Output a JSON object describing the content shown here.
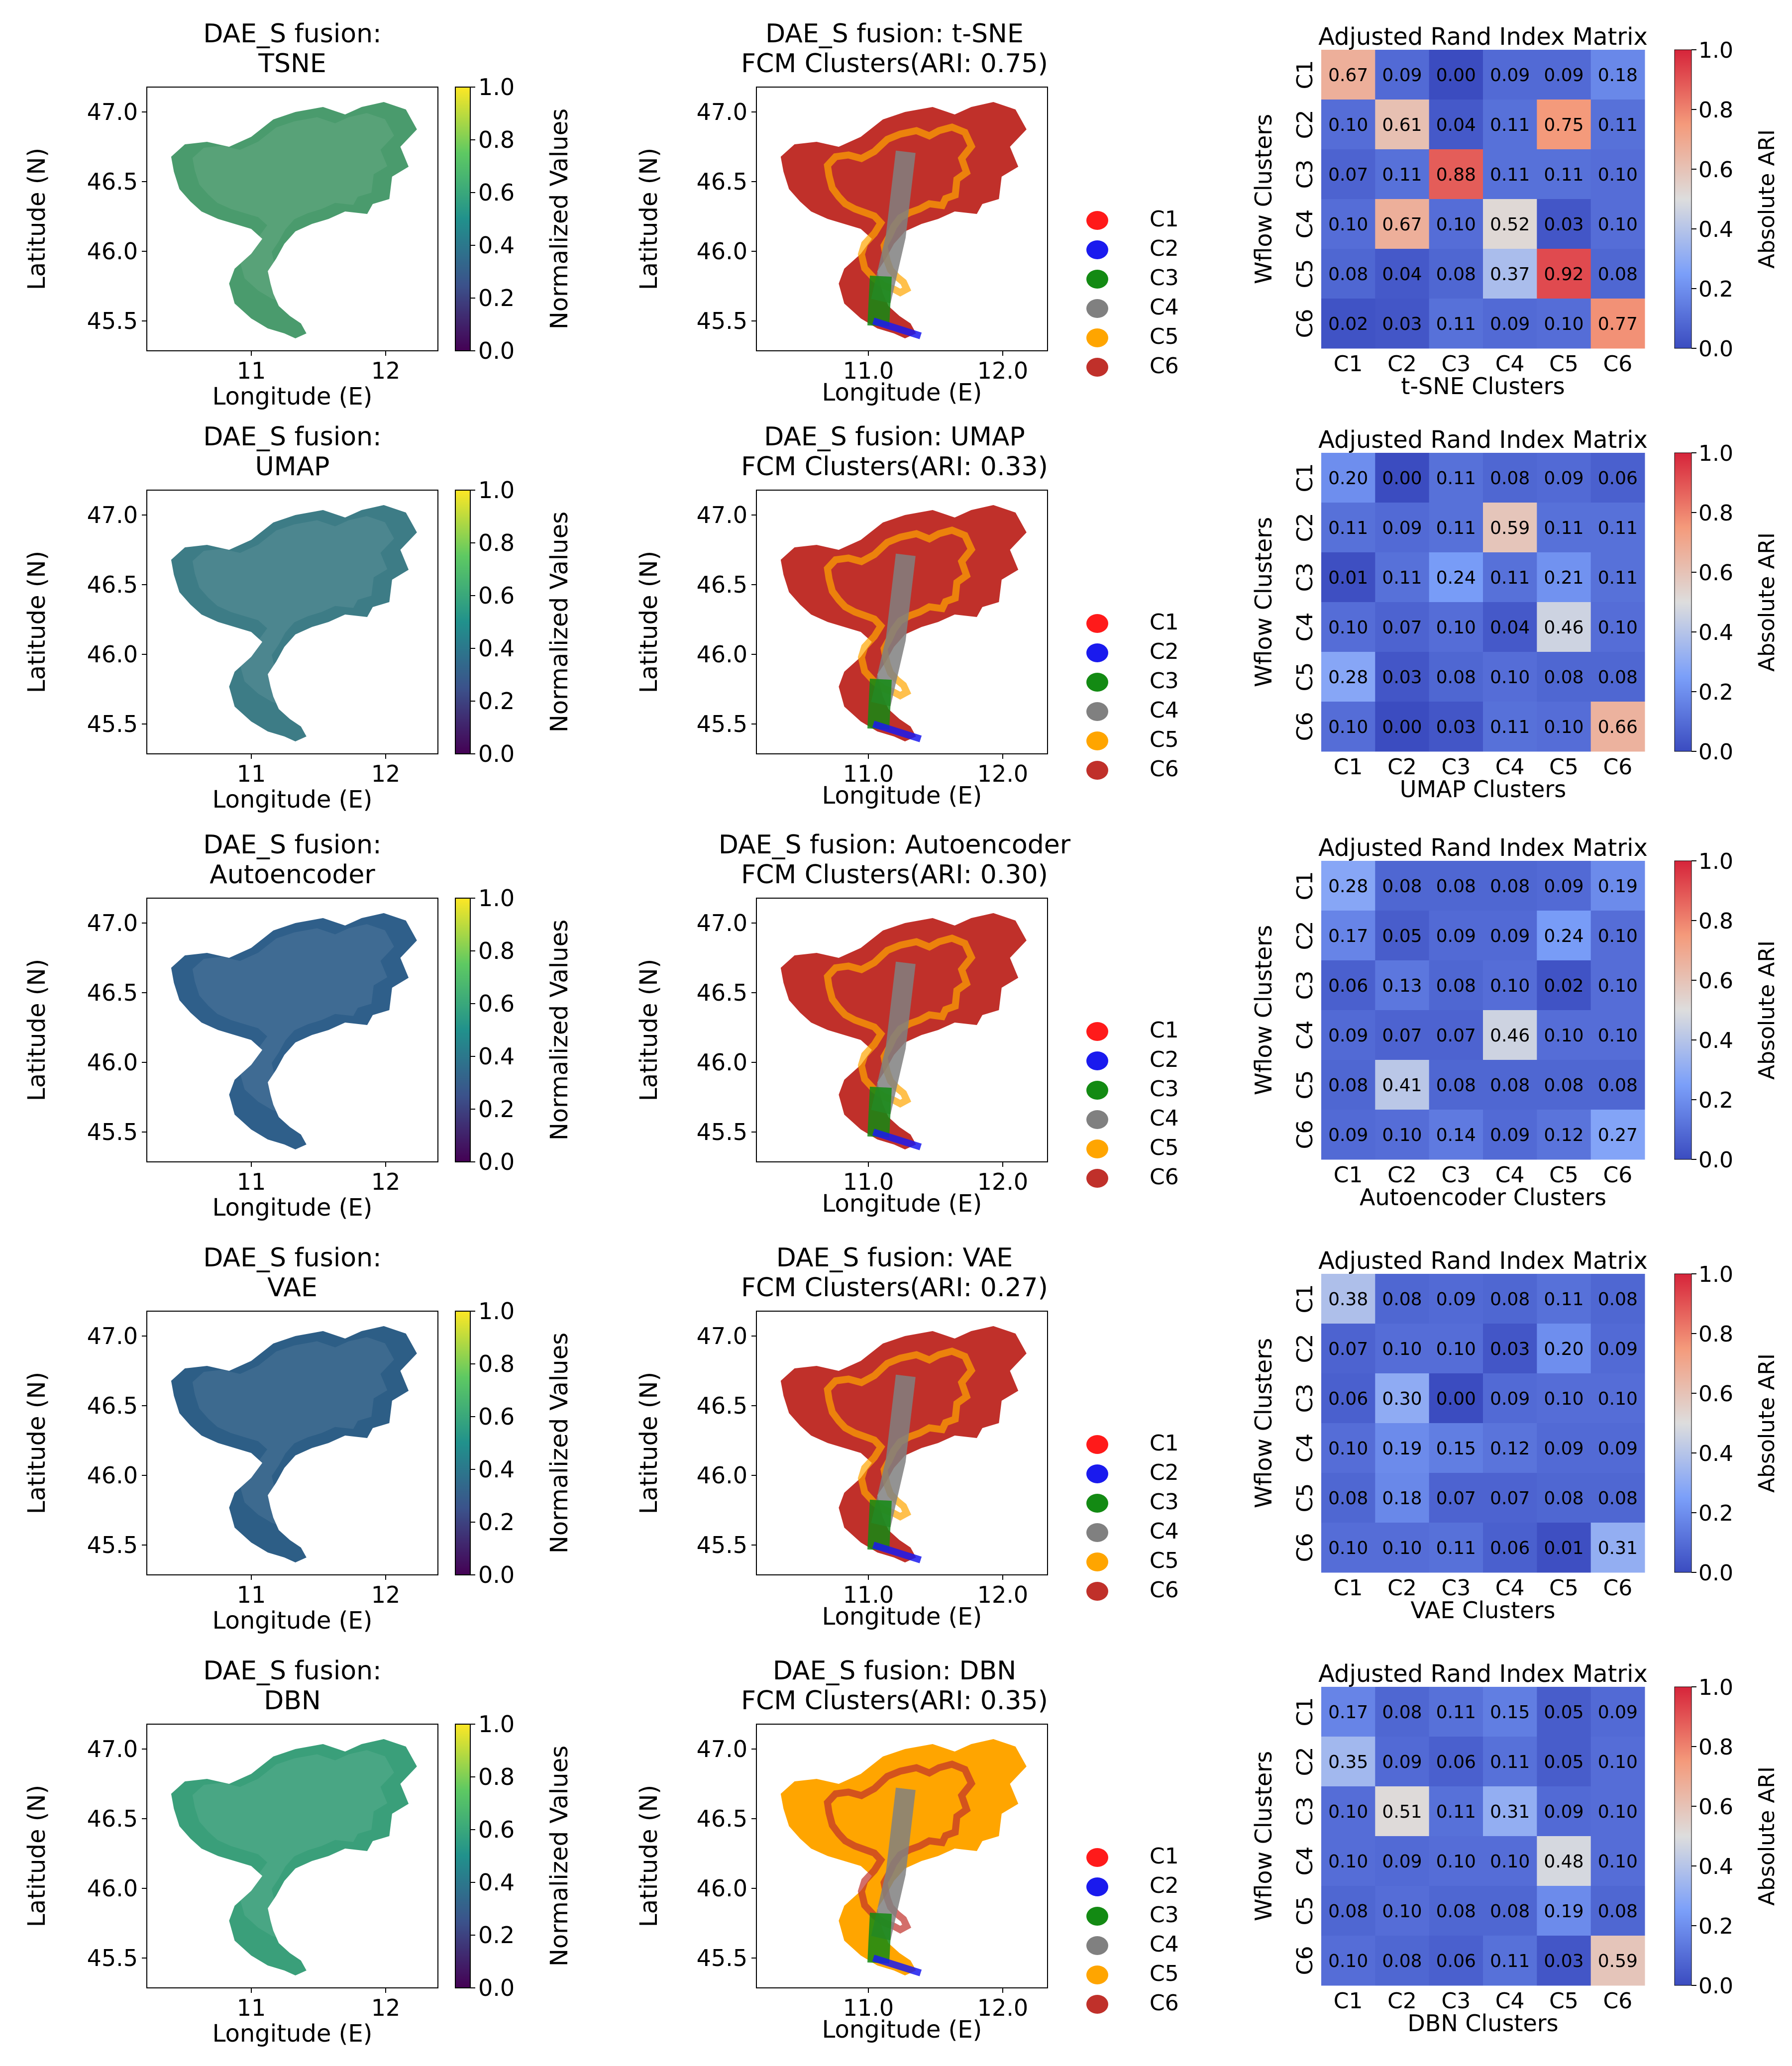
{
  "colors": {
    "region": "#2a2a2a",
    "C1": "#ff1a1a",
    "C2": "#1a1aee",
    "C3": "#138a13",
    "C4": "#808080",
    "C5": "#ffa500",
    "C6": "#c0302a"
  },
  "common": {
    "x_label": "Longitude (E)",
    "y_label": "Latitude (N)",
    "colorbar_label": "Normalized Values",
    "ari_colorbar_label": "Absolute ARI",
    "ari_y_label": "Wflow Clusters"
  },
  "chart_data": [
    {
      "type": "heatmap",
      "method": "TSNE",
      "title": "DAE_S fusion:\nTSNE",
      "map_fill": "#4a9b6d",
      "lat_ticks": [
        "47.0",
        "46.5",
        "46.0",
        "45.5"
      ],
      "lon_ticks": [
        "11",
        "12"
      ],
      "colorbar_ticks": [
        "1.0",
        "0.8",
        "0.6",
        "0.4",
        "0.2",
        "0.0"
      ]
    },
    {
      "type": "scatter",
      "method": "t-SNE",
      "title": "DAE_S fusion: t-SNE\nFCM Clusters(ARI: 0.75)",
      "dominant_cluster": "C6",
      "lat_ticks": [
        "47.0",
        "46.5",
        "46.0",
        "45.5"
      ],
      "lon_ticks": [
        "11.0",
        "12.0"
      ],
      "legend": [
        "C1",
        "C2",
        "C3",
        "C4",
        "C5",
        "C6"
      ]
    },
    {
      "type": "heatmap",
      "title": "Adjusted Rand Index Matrix",
      "xlabel": "t-SNE Clusters",
      "rows": [
        "C1",
        "C2",
        "C3",
        "C4",
        "C5",
        "C6"
      ],
      "cols": [
        "C1",
        "C2",
        "C3",
        "C4",
        "C5",
        "C6"
      ],
      "values": [
        [
          0.67,
          0.09,
          0.0,
          0.09,
          0.09,
          0.18
        ],
        [
          0.1,
          0.61,
          0.04,
          0.11,
          0.75,
          0.11
        ],
        [
          0.07,
          0.11,
          0.88,
          0.11,
          0.11,
          0.1
        ],
        [
          0.1,
          0.67,
          0.1,
          0.52,
          0.03,
          0.1
        ],
        [
          0.08,
          0.04,
          0.08,
          0.37,
          0.92,
          0.08
        ],
        [
          0.02,
          0.03,
          0.11,
          0.09,
          0.1,
          0.77
        ]
      ],
      "colorbar_ticks": [
        "1.0",
        "0.8",
        "0.6",
        "0.4",
        "0.2",
        "0.0"
      ]
    },
    {
      "type": "heatmap",
      "method": "UMAP",
      "title": "DAE_S fusion:\nUMAP",
      "map_fill": "#3d7c86",
      "lat_ticks": [
        "47.0",
        "46.5",
        "46.0",
        "45.5"
      ],
      "lon_ticks": [
        "11",
        "12"
      ],
      "colorbar_ticks": [
        "1.0",
        "0.8",
        "0.6",
        "0.4",
        "0.2",
        "0.0"
      ]
    },
    {
      "type": "scatter",
      "method": "UMAP",
      "title": "DAE_S fusion: UMAP\nFCM Clusters(ARI: 0.33)",
      "dominant_cluster": "C6",
      "lat_ticks": [
        "47.0",
        "46.5",
        "46.0",
        "45.5"
      ],
      "lon_ticks": [
        "11.0",
        "12.0"
      ],
      "legend": [
        "C1",
        "C2",
        "C3",
        "C4",
        "C5",
        "C6"
      ]
    },
    {
      "type": "heatmap",
      "title": "Adjusted Rand Index Matrix",
      "xlabel": "UMAP Clusters",
      "rows": [
        "C1",
        "C2",
        "C3",
        "C4",
        "C5",
        "C6"
      ],
      "cols": [
        "C1",
        "C2",
        "C3",
        "C4",
        "C5",
        "C6"
      ],
      "values": [
        [
          0.2,
          0.0,
          0.11,
          0.08,
          0.09,
          0.06
        ],
        [
          0.11,
          0.09,
          0.11,
          0.59,
          0.11,
          0.11
        ],
        [
          0.01,
          0.11,
          0.24,
          0.11,
          0.21,
          0.11
        ],
        [
          0.1,
          0.07,
          0.1,
          0.04,
          0.46,
          0.1
        ],
        [
          0.28,
          0.03,
          0.08,
          0.1,
          0.08,
          0.08
        ],
        [
          0.1,
          0.0,
          0.03,
          0.11,
          0.1,
          0.66
        ]
      ],
      "colorbar_ticks": [
        "1.0",
        "0.8",
        "0.6",
        "0.4",
        "0.2",
        "0.0"
      ]
    },
    {
      "type": "heatmap",
      "method": "Autoencoder",
      "title": "DAE_S fusion:\nAutoencoder",
      "map_fill": "#2f5f8a",
      "lat_ticks": [
        "47.0",
        "46.5",
        "46.0",
        "45.5"
      ],
      "lon_ticks": [
        "11",
        "12"
      ],
      "colorbar_ticks": [
        "1.0",
        "0.8",
        "0.6",
        "0.4",
        "0.2",
        "0.0"
      ]
    },
    {
      "type": "scatter",
      "method": "Autoencoder",
      "title": "DAE_S fusion: Autoencoder\nFCM Clusters(ARI: 0.30)",
      "dominant_cluster": "C6",
      "lat_ticks": [
        "47.0",
        "46.5",
        "46.0",
        "45.5"
      ],
      "lon_ticks": [
        "11.0",
        "12.0"
      ],
      "legend": [
        "C1",
        "C2",
        "C3",
        "C4",
        "C5",
        "C6"
      ]
    },
    {
      "type": "heatmap",
      "title": "Adjusted Rand Index Matrix",
      "xlabel": "Autoencoder Clusters",
      "rows": [
        "C1",
        "C2",
        "C3",
        "C4",
        "C5",
        "C6"
      ],
      "cols": [
        "C1",
        "C2",
        "C3",
        "C4",
        "C5",
        "C6"
      ],
      "values": [
        [
          0.28,
          0.08,
          0.08,
          0.08,
          0.09,
          0.19
        ],
        [
          0.17,
          0.05,
          0.09,
          0.09,
          0.24,
          0.1
        ],
        [
          0.06,
          0.13,
          0.08,
          0.1,
          0.02,
          0.1
        ],
        [
          0.09,
          0.07,
          0.07,
          0.46,
          0.1,
          0.1
        ],
        [
          0.08,
          0.41,
          0.08,
          0.08,
          0.08,
          0.08
        ],
        [
          0.09,
          0.1,
          0.14,
          0.09,
          0.12,
          0.27
        ]
      ],
      "colorbar_ticks": [
        "1.0",
        "0.8",
        "0.6",
        "0.4",
        "0.2",
        "0.0"
      ]
    },
    {
      "type": "heatmap",
      "method": "VAE",
      "title": "DAE_S fusion:\nVAE",
      "map_fill": "#2d5e86",
      "lat_ticks": [
        "47.0",
        "46.5",
        "46.0",
        "45.5"
      ],
      "lon_ticks": [
        "11",
        "12"
      ],
      "colorbar_ticks": [
        "1.0",
        "0.8",
        "0.6",
        "0.4",
        "0.2",
        "0.0"
      ]
    },
    {
      "type": "scatter",
      "method": "VAE",
      "title": "DAE_S fusion: VAE\nFCM Clusters(ARI: 0.27)",
      "dominant_cluster": "C6",
      "lat_ticks": [
        "47.0",
        "46.5",
        "46.0",
        "45.5"
      ],
      "lon_ticks": [
        "11.0",
        "12.0"
      ],
      "legend": [
        "C1",
        "C2",
        "C3",
        "C4",
        "C5",
        "C6"
      ]
    },
    {
      "type": "heatmap",
      "title": "Adjusted Rand Index Matrix",
      "xlabel": "VAE Clusters",
      "rows": [
        "C1",
        "C2",
        "C3",
        "C4",
        "C5",
        "C6"
      ],
      "cols": [
        "C1",
        "C2",
        "C3",
        "C4",
        "C5",
        "C6"
      ],
      "values": [
        [
          0.38,
          0.08,
          0.09,
          0.08,
          0.11,
          0.08
        ],
        [
          0.07,
          0.1,
          0.1,
          0.03,
          0.2,
          0.09
        ],
        [
          0.06,
          0.3,
          0.0,
          0.09,
          0.1,
          0.1
        ],
        [
          0.1,
          0.19,
          0.15,
          0.12,
          0.09,
          0.09
        ],
        [
          0.08,
          0.18,
          0.07,
          0.07,
          0.08,
          0.08
        ],
        [
          0.1,
          0.1,
          0.11,
          0.06,
          0.01,
          0.31
        ]
      ],
      "colorbar_ticks": [
        "1.0",
        "0.8",
        "0.6",
        "0.4",
        "0.2",
        "0.0"
      ]
    },
    {
      "type": "heatmap",
      "method": "DBN",
      "title": "DAE_S fusion:\nDBN",
      "map_fill": "#3a9f7a",
      "lat_ticks": [
        "47.0",
        "46.5",
        "46.0",
        "45.5"
      ],
      "lon_ticks": [
        "11",
        "12"
      ],
      "colorbar_ticks": [
        "1.0",
        "0.8",
        "0.6",
        "0.4",
        "0.2",
        "0.0"
      ]
    },
    {
      "type": "scatter",
      "method": "DBN",
      "title": "DAE_S fusion: DBN\nFCM Clusters(ARI: 0.35)",
      "dominant_cluster": "C5",
      "lat_ticks": [
        "47.0",
        "46.5",
        "46.0",
        "45.5"
      ],
      "lon_ticks": [
        "11.0",
        "12.0"
      ],
      "legend": [
        "C1",
        "C2",
        "C3",
        "C4",
        "C5",
        "C6"
      ]
    },
    {
      "type": "heatmap",
      "title": "Adjusted Rand Index Matrix",
      "xlabel": "DBN Clusters",
      "rows": [
        "C1",
        "C2",
        "C3",
        "C4",
        "C5",
        "C6"
      ],
      "cols": [
        "C1",
        "C2",
        "C3",
        "C4",
        "C5",
        "C6"
      ],
      "values": [
        [
          0.17,
          0.08,
          0.11,
          0.15,
          0.05,
          0.09
        ],
        [
          0.35,
          0.09,
          0.06,
          0.11,
          0.05,
          0.1
        ],
        [
          0.1,
          0.51,
          0.11,
          0.31,
          0.09,
          0.1
        ],
        [
          0.1,
          0.09,
          0.1,
          0.1,
          0.48,
          0.1
        ],
        [
          0.08,
          0.1,
          0.08,
          0.08,
          0.19,
          0.08
        ],
        [
          0.1,
          0.08,
          0.06,
          0.11,
          0.03,
          0.59
        ]
      ],
      "colorbar_ticks": [
        "1.0",
        "0.8",
        "0.6",
        "0.4",
        "0.2",
        "0.0"
      ]
    }
  ]
}
